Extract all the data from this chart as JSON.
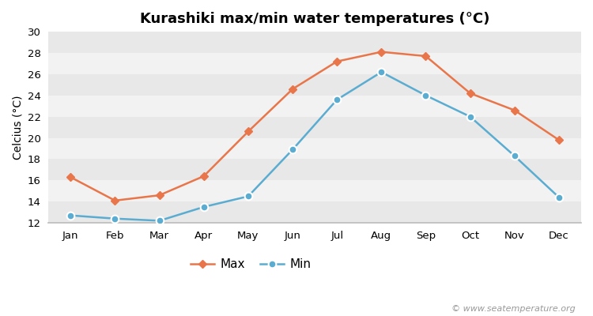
{
  "title": "Kurashiki max/min water temperatures (°C)",
  "ylabel": "Celcius (°C)",
  "months": [
    "Jan",
    "Feb",
    "Mar",
    "Apr",
    "May",
    "Jun",
    "Jul",
    "Aug",
    "Sep",
    "Oct",
    "Nov",
    "Dec"
  ],
  "max_values": [
    16.3,
    14.1,
    14.6,
    16.4,
    20.6,
    24.6,
    27.2,
    28.1,
    27.7,
    24.2,
    22.6,
    19.8
  ],
  "min_values": [
    12.7,
    12.4,
    12.2,
    13.5,
    14.5,
    18.9,
    23.6,
    26.2,
    24.0,
    22.0,
    18.3,
    14.4
  ],
  "max_color": "#e8764a",
  "min_color": "#5aacd0",
  "fig_bg_color": "#ffffff",
  "plot_bg_color": "#ffffff",
  "stripe_color_dark": "#e8e8e8",
  "stripe_color_light": "#f2f2f2",
  "ylim": [
    12,
    30
  ],
  "yticks": [
    12,
    14,
    16,
    18,
    20,
    22,
    24,
    26,
    28,
    30
  ],
  "watermark": "© www.seatemperature.org",
  "legend_max": "Max",
  "legend_min": "Min",
  "title_fontsize": 13,
  "label_fontsize": 10,
  "tick_fontsize": 9.5,
  "watermark_fontsize": 8
}
